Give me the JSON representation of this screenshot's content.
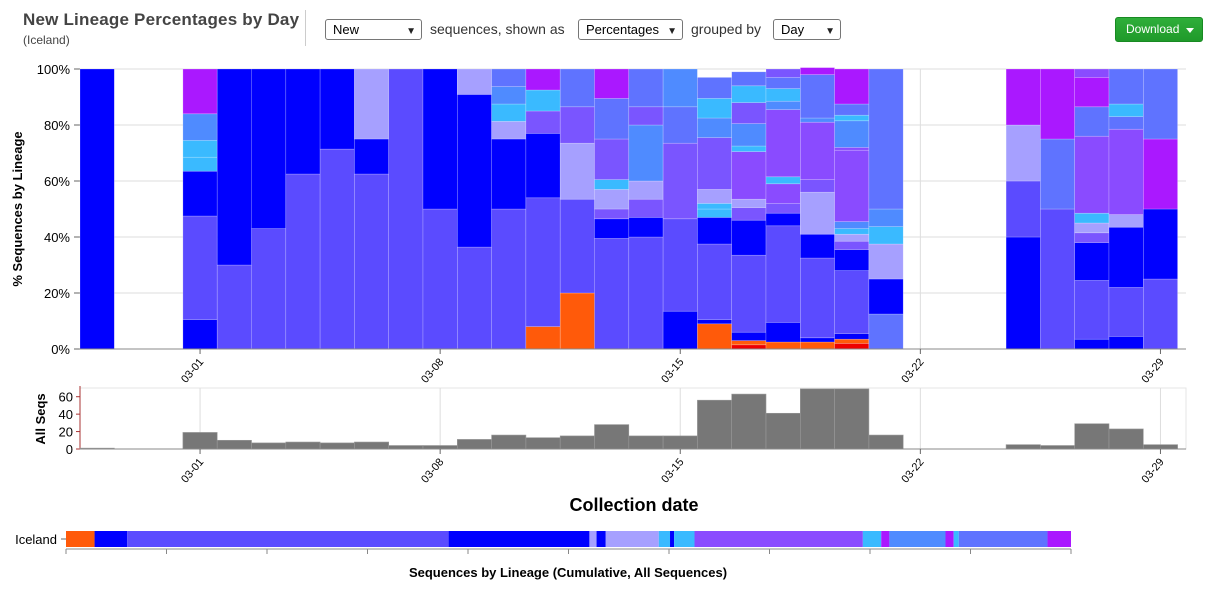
{
  "header": {
    "title": "New Lineage Percentages by Day",
    "subtitle": "(Iceland)"
  },
  "controls": {
    "type_select": "New",
    "label_sequences": "sequences, shown as",
    "mode_select": "Percentages",
    "label_grouped": "grouped by",
    "group_select": "Day",
    "download_label": "Download"
  },
  "colors": {
    "L1": "#0000ff",
    "L2": "#5b4bff",
    "L3": "#a6a0ff",
    "L4": "#4f8bff",
    "L5": "#3abaff",
    "L6": "#7a55ff",
    "L7": "#8a4bff",
    "L8": "#aa18ff",
    "L9": "#ff5a0a",
    "L10": "#ee0000",
    "L11": "#5f73ff",
    "L12": "#4d64ff",
    "grid": "#dddddd",
    "bar_gray": "#777777"
  },
  "chart_data": [
    {
      "type": "bar",
      "stacked": true,
      "ylabel": "% Sequences by Lineage",
      "ylim": [
        0,
        100
      ],
      "yticks": [
        "0%",
        "20%",
        "40%",
        "60%",
        "80%",
        "100%"
      ],
      "xticks": [
        "03-01",
        "03-08",
        "03-15",
        "03-22",
        "03-29"
      ],
      "grid": true,
      "categories": [
        "02-27",
        "02-28",
        "02-29",
        "03-01",
        "03-02",
        "03-03",
        "03-04",
        "03-05",
        "03-06",
        "03-07",
        "03-08",
        "03-09",
        "03-10",
        "03-11",
        "03-12",
        "03-13",
        "03-14",
        "03-15",
        "03-16",
        "03-17",
        "03-18",
        "03-19",
        "03-20",
        "03-21",
        "03-22",
        "03-23",
        "03-24",
        "03-25",
        "03-26",
        "03-27",
        "03-28",
        "03-29"
      ],
      "segments": [
        [
          [
            "L1",
            100
          ]
        ],
        [],
        [],
        [
          [
            "L1",
            10.5
          ],
          [
            "L2",
            37
          ],
          [
            "L1",
            16
          ],
          [
            "L5",
            5
          ],
          [
            "L5",
            6
          ],
          [
            "L4",
            9.5
          ],
          [
            "L8",
            16
          ]
        ],
        [
          [
            "L2",
            30
          ],
          [
            "L1",
            70
          ]
        ],
        [
          [
            "L2",
            43
          ],
          [
            "L1",
            57
          ]
        ],
        [
          [
            "L2",
            62.5
          ],
          [
            "L1",
            37.5
          ]
        ],
        [
          [
            "L2",
            71.4
          ],
          [
            "L1",
            28.6
          ]
        ],
        [
          [
            "L2",
            62.5
          ],
          [
            "L1",
            12.5
          ],
          [
            "L3",
            25
          ]
        ],
        [
          [
            "L2",
            100
          ]
        ],
        [
          [
            "L2",
            50
          ],
          [
            "L1",
            50
          ]
        ],
        [
          [
            "L2",
            36.4
          ],
          [
            "L1",
            54.5
          ],
          [
            "L3",
            9.1
          ]
        ],
        [
          [
            "L2",
            50
          ],
          [
            "L1",
            25
          ],
          [
            "L3",
            6.3
          ],
          [
            "L5",
            6.2
          ],
          [
            "L4",
            6.2
          ],
          [
            "L11",
            6.3
          ]
        ],
        [
          [
            "L9",
            8
          ],
          [
            "L2",
            46
          ],
          [
            "L1",
            23
          ],
          [
            "L6",
            8
          ],
          [
            "L5",
            7.5
          ],
          [
            "L8",
            7.5
          ]
        ],
        [
          [
            "L9",
            20
          ],
          [
            "L2",
            33.5
          ],
          [
            "L3",
            20
          ],
          [
            "L6",
            13
          ],
          [
            "L11",
            13.5
          ]
        ],
        [
          [
            "L2",
            39.5
          ],
          [
            "L1",
            7
          ],
          [
            "L6",
            3.5
          ],
          [
            "L3",
            7
          ],
          [
            "L5",
            3.5
          ],
          [
            "L6",
            14.5
          ],
          [
            "L11",
            14.5
          ],
          [
            "L8",
            10.5
          ]
        ],
        [
          [
            "L2",
            40
          ],
          [
            "L1",
            7
          ],
          [
            "L6",
            6.5
          ],
          [
            "L3",
            6.5
          ],
          [
            "L4",
            20
          ],
          [
            "L6",
            6.5
          ],
          [
            "L11",
            13.5
          ]
        ],
        [
          [
            "L1",
            13.5
          ],
          [
            "L2",
            33
          ],
          [
            "L6",
            27
          ],
          [
            "L11",
            13
          ],
          [
            "L4",
            13.5
          ]
        ],
        [
          [
            "L9",
            9
          ],
          [
            "L1",
            1.5
          ],
          [
            "L2",
            27
          ],
          [
            "L1",
            9.5
          ],
          [
            "L5",
            3
          ],
          [
            "L5",
            2
          ],
          [
            "L3",
            5
          ],
          [
            "L6",
            18.5
          ],
          [
            "L4",
            7
          ],
          [
            "L5",
            7
          ],
          [
            "L11",
            7.5
          ]
        ],
        [
          [
            "L10",
            1.5
          ],
          [
            "L9",
            1.5
          ],
          [
            "L1",
            3
          ],
          [
            "L2",
            27.5
          ],
          [
            "L1",
            12.5
          ],
          [
            "L6",
            4.5
          ],
          [
            "L3",
            3
          ],
          [
            "L7",
            17
          ],
          [
            "L5",
            2
          ],
          [
            "L4",
            8
          ],
          [
            "L6",
            7.5
          ],
          [
            "L5",
            6
          ],
          [
            "L11",
            5
          ]
        ],
        [
          [
            "L9",
            2.5
          ],
          [
            "L1",
            7
          ],
          [
            "L2",
            34.5
          ],
          [
            "L1",
            4.5
          ],
          [
            "L6",
            3.5
          ],
          [
            "L7",
            7
          ],
          [
            "L5",
            2.5
          ],
          [
            "L7",
            24
          ],
          [
            "L4",
            3
          ],
          [
            "L5",
            4.5
          ],
          [
            "L11",
            4
          ],
          [
            "L6",
            3
          ]
        ],
        [
          [
            "L9",
            2.5
          ],
          [
            "L1",
            1.5
          ],
          [
            "L2",
            28.5
          ],
          [
            "L1",
            8.5
          ],
          [
            "L3",
            15
          ],
          [
            "L6",
            4.5
          ],
          [
            "L7",
            20.5
          ],
          [
            "L4",
            1.5
          ],
          [
            "L11",
            15.5
          ],
          [
            "L8",
            2.5
          ]
        ],
        [
          [
            "L10",
            2
          ],
          [
            "L9",
            1.5
          ],
          [
            "L1",
            2
          ],
          [
            "L2",
            22.5
          ],
          [
            "L1",
            7.5
          ],
          [
            "L6",
            3
          ],
          [
            "L3",
            2.5
          ],
          [
            "L5",
            2
          ],
          [
            "L4",
            2.5
          ],
          [
            "L7",
            25.5
          ],
          [
            "L7",
            1
          ],
          [
            "L4",
            9.5
          ],
          [
            "L5",
            2
          ],
          [
            "L11",
            4
          ],
          [
            "L8",
            12.5
          ]
        ],
        [
          [
            "L11",
            12.5
          ],
          [
            "L1",
            12.5
          ],
          [
            "L3",
            12.5
          ],
          [
            "L5",
            6.2
          ],
          [
            "L4",
            6.3
          ],
          [
            "L11",
            50
          ]
        ],
        [],
        [],
        [],
        [
          [
            "L1",
            40
          ],
          [
            "L2",
            20
          ],
          [
            "L3",
            20
          ],
          [
            "L8",
            20
          ]
        ],
        [
          [
            "L2",
            50
          ],
          [
            "L11",
            25
          ],
          [
            "L8",
            25
          ]
        ],
        [
          [
            "L1",
            3.5
          ],
          [
            "L2",
            21
          ],
          [
            "L1",
            13.5
          ],
          [
            "L6",
            3.5
          ],
          [
            "L3",
            3.5
          ],
          [
            "L5",
            3.5
          ],
          [
            "L7",
            27.5
          ],
          [
            "L11",
            10.5
          ],
          [
            "L8",
            10.5
          ],
          [
            "L7",
            3
          ]
        ],
        [
          [
            "L1",
            4.5
          ],
          [
            "L2",
            17.5
          ],
          [
            "L1",
            21.5
          ],
          [
            "L3",
            4.5
          ],
          [
            "L7",
            30.5
          ],
          [
            "L11",
            4.5
          ],
          [
            "L5",
            4.5
          ],
          [
            "L11",
            12.5
          ]
        ],
        [
          [
            "L2",
            25
          ],
          [
            "L1",
            25
          ],
          [
            "L8",
            25
          ],
          [
            "L11",
            25
          ]
        ]
      ]
    },
    {
      "type": "bar",
      "ylabel": "All Seqs",
      "xlabel": "Collection date",
      "ylim": [
        0,
        70
      ],
      "yticks": [
        "0",
        "20",
        "40",
        "60"
      ],
      "xticks": [
        "03-01",
        "03-08",
        "03-15",
        "03-22",
        "03-29"
      ],
      "categories": [
        "02-27",
        "02-28",
        "02-29",
        "03-01",
        "03-02",
        "03-03",
        "03-04",
        "03-05",
        "03-06",
        "03-07",
        "03-08",
        "03-09",
        "03-10",
        "03-11",
        "03-12",
        "03-13",
        "03-14",
        "03-15",
        "03-16",
        "03-17",
        "03-18",
        "03-19",
        "03-20",
        "03-21",
        "03-22",
        "03-23",
        "03-24",
        "03-25",
        "03-26",
        "03-27",
        "03-28",
        "03-29"
      ],
      "values": [
        1,
        0,
        0,
        19,
        10,
        7,
        8,
        7,
        8,
        4,
        4,
        11,
        16,
        13,
        15,
        28,
        15,
        15,
        56,
        63,
        41,
        69,
        69,
        16,
        0,
        0,
        0,
        5,
        4,
        29,
        23,
        5
      ]
    },
    {
      "type": "bar",
      "orientation": "horizontal",
      "title": "Sequences by Lineage  (Cumulative, All Sequences)",
      "category": "Iceland",
      "segments": [
        [
          "L9",
          28
        ],
        [
          "L1",
          32
        ],
        [
          "L2",
          315
        ],
        [
          "L1",
          138
        ],
        [
          "L3",
          7
        ],
        [
          "L1",
          9
        ],
        [
          "L3",
          52
        ],
        [
          "L5",
          11
        ],
        [
          "L1",
          4
        ],
        [
          "L5",
          20
        ],
        [
          "L7",
          165
        ],
        [
          "L5",
          18
        ],
        [
          "L8",
          8
        ],
        [
          "L4",
          55
        ],
        [
          "L8",
          8
        ],
        [
          "L5",
          5
        ],
        [
          "L11",
          87
        ],
        [
          "L8",
          23
        ]
      ]
    }
  ]
}
